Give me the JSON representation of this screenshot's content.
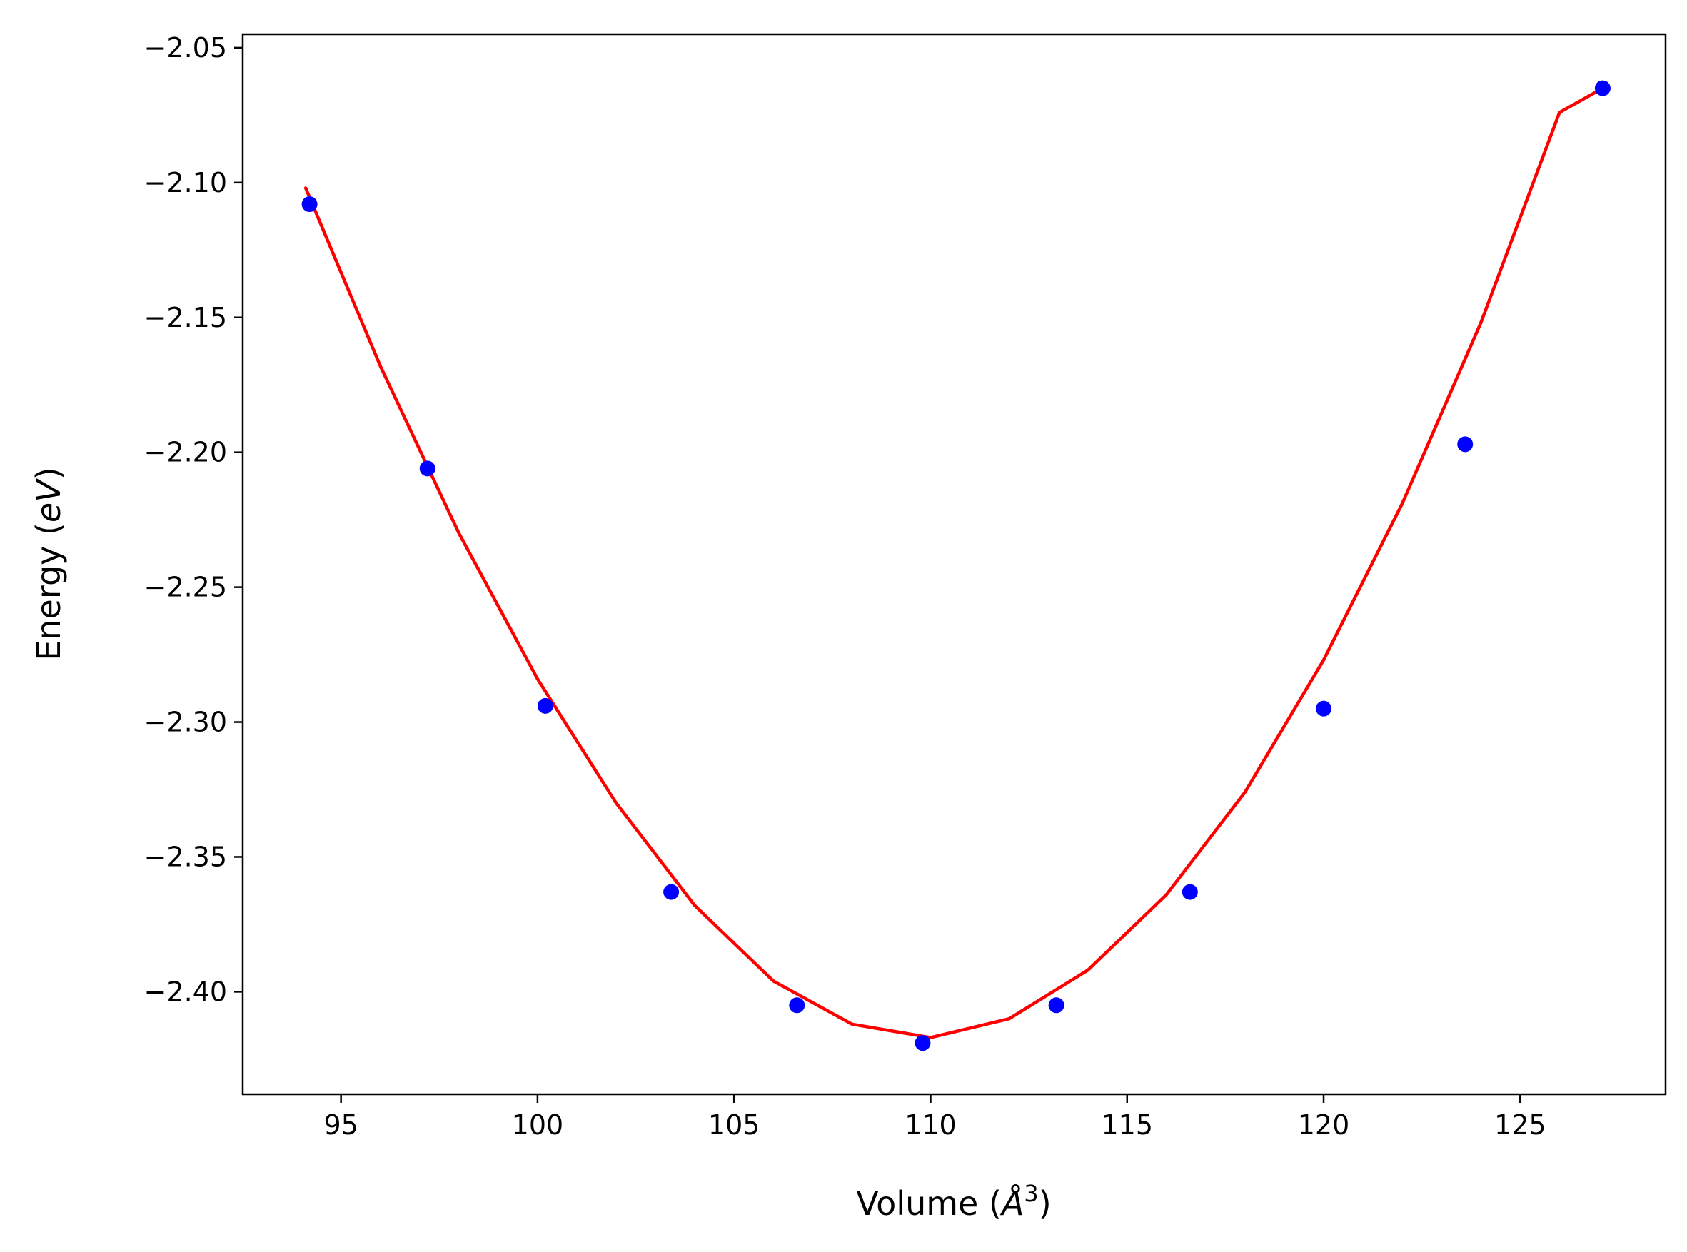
{
  "chart_data": {
    "type": "line",
    "title": "",
    "xlabel": "Volume",
    "xlabel_unit": "Å",
    "xlabel_unit_exp": "3",
    "ylabel": "Energy",
    "ylabel_unit": "eV",
    "xlim": [
      92.5,
      128.7
    ],
    "ylim": [
      -2.438,
      -2.045
    ],
    "xticks": [
      95,
      100,
      105,
      110,
      115,
      120,
      125
    ],
    "yticks": [
      -2.05,
      -2.1,
      -2.15,
      -2.2,
      -2.25,
      -2.3,
      -2.35,
      -2.4
    ],
    "ytick_labels": [
      "−2.05",
      "−2.10",
      "−2.15",
      "−2.20",
      "−2.25",
      "−2.30",
      "−2.35",
      "−2.40"
    ],
    "grid": false,
    "series": [
      {
        "kind": "scatter",
        "color": "#0000ff",
        "x": [
          94.2,
          97.2,
          100.2,
          103.4,
          106.6,
          109.8,
          113.2,
          116.6,
          120.0,
          123.6,
          127.1
        ],
        "y": [
          -2.108,
          -2.206,
          -2.294,
          -2.363,
          -2.405,
          -2.419,
          -2.405,
          -2.363,
          -2.295,
          -2.197,
          -2.065
        ]
      },
      {
        "kind": "line",
        "color": "#ff0000",
        "x": [
          94.1,
          96.0,
          98.0,
          100.0,
          102.0,
          104.0,
          106.0,
          108.0,
          110.0,
          112.0,
          114.0,
          116.0,
          118.0,
          120.0,
          122.0,
          124.0,
          126.0,
          127.1
        ],
        "y": [
          -2.102,
          -2.168,
          -2.23,
          -2.284,
          -2.33,
          -2.368,
          -2.396,
          -2.412,
          -2.417,
          -2.41,
          -2.392,
          -2.364,
          -2.326,
          -2.277,
          -2.219,
          -2.152,
          -2.074,
          -2.065
        ]
      }
    ]
  }
}
